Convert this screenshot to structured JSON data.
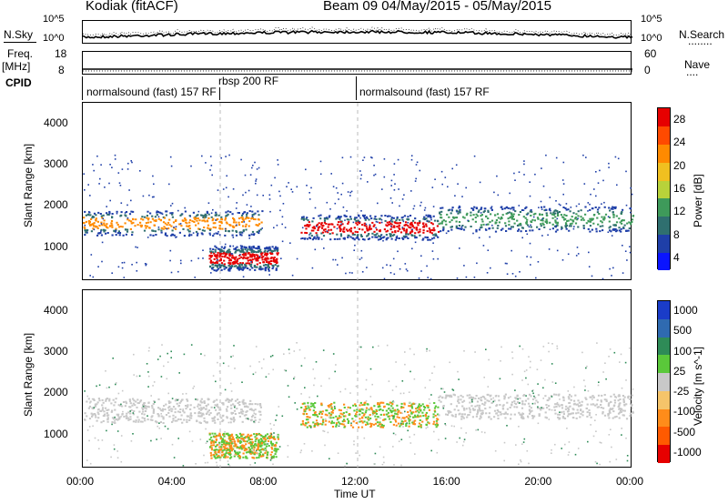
{
  "header": {
    "station": "Kodiak (fitACF)",
    "beam_date": "Beam 09  04/May/2015 - 05/May/2015"
  },
  "top_panels": {
    "nsky_label": "N.Sky",
    "nsearch_label": "N.Search",
    "nsearch_dots": "........",
    "noise_left_ticks": [
      "10^5",
      "10^0"
    ],
    "noise_right_ticks": [
      "10^5",
      "10^0"
    ],
    "freq_label": "Freq.",
    "freq_unit": "[MHz]",
    "freq_ticks": [
      "18",
      "8"
    ],
    "nave_ticks": [
      "60",
      "0"
    ],
    "nave_label": "Nave",
    "nave_dots": "....",
    "cpid_label": "CPID",
    "cpid_segments": [
      {
        "label": "normalsound (fast) 157 RF",
        "start_hour": 0
      },
      {
        "label": "rbsp 200 RF",
        "start_hour": 6
      },
      {
        "label": "normalsound (fast) 157 RF",
        "start_hour": 12
      }
    ]
  },
  "chart_data": [
    {
      "type": "heatmap",
      "panel": "power",
      "ylabel": "Slant Range [km]",
      "xlabel": "",
      "ylim": [
        180,
        4500
      ],
      "yticks": [
        "1000",
        "2000",
        "3000",
        "4000"
      ],
      "xlim_hours": [
        0,
        24
      ],
      "colorbar_label": "Power [dB]",
      "colorbar_ticks": [
        "4",
        "8",
        "12",
        "16",
        "20",
        "24",
        "28"
      ],
      "colorbar_colors": [
        "#0a14ff",
        "#1f3fa8",
        "#2f6f6f",
        "#3e9a5a",
        "#b8d23a",
        "#f0c020",
        "#ff8a00",
        "#ff4a00",
        "#e60000"
      ],
      "scatter_bands": [
        {
          "hour_start": 0,
          "hour_end": 7.8,
          "range_km": 1600,
          "level": "orange"
        },
        {
          "hour_start": 5.5,
          "hour_end": 8.5,
          "range_km": 750,
          "level": "red"
        },
        {
          "hour_start": 9.5,
          "hour_end": 15.5,
          "range_km": 1500,
          "level": "red"
        },
        {
          "hour_start": 15.5,
          "hour_end": 24,
          "range_km": 1700,
          "level": "green"
        }
      ]
    },
    {
      "type": "heatmap",
      "panel": "velocity",
      "ylabel": "Slant Range [km]",
      "xlabel": "Time UT",
      "ylim": [
        180,
        4500
      ],
      "yticks": [
        "1000",
        "2000",
        "3000",
        "4000"
      ],
      "xlim_hours": [
        0,
        24
      ],
      "xticks": [
        "00:00",
        "04:00",
        "08:00",
        "12:00",
        "16:00",
        "20:00",
        "00:00"
      ],
      "colorbar_label": "Velocity [m s^-1]",
      "colorbar_ticks": [
        "1000",
        "500",
        "100",
        "25",
        "-25",
        "-100",
        "-500",
        "-1000"
      ],
      "colorbar_colors": [
        "#1a3cc8",
        "#2f6ab0",
        "#2e8b57",
        "#5ac83a",
        "#c8c8c8",
        "#f5c46a",
        "#ff8c1a",
        "#ff5a00",
        "#e60000"
      ]
    }
  ]
}
